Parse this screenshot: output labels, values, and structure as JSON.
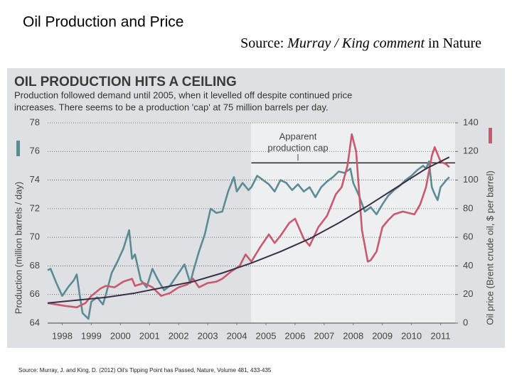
{
  "slide": {
    "title": "Oil Production and Price",
    "source": {
      "prefix": "Source: ",
      "italic": "Murray / King comment",
      "suffix": " in Nature"
    },
    "footnote": "Source: Murray, J. and King, D. (2012) Oil's Tipping Point has Passed, Nature, Volume 481, 433-435"
  },
  "chart_data": {
    "type": "line",
    "title": "OIL PRODUCTION HITS A CEILING",
    "subtitle": [
      "Production followed demand until 2005, when it levelled off despite continued price",
      "increases. There seems to be a production 'cap' at 75 million barrels per day."
    ],
    "y_label": "Production (million barrels / day)",
    "y2_label": "Oil price (Brent crude oil, $ per barrel)",
    "xlim": [
      1998,
      2012
    ],
    "xticks": [
      {
        "value": 1998.5,
        "label": "1998"
      },
      {
        "value": 1999.5,
        "label": "1999"
      },
      {
        "value": 2000.5,
        "label": "2000"
      },
      {
        "value": 2001.5,
        "label": "2001"
      },
      {
        "value": 2002.5,
        "label": "2002"
      },
      {
        "value": 2003.5,
        "label": "2003"
      },
      {
        "value": 2004.5,
        "label": "2004"
      },
      {
        "value": 2005.5,
        "label": "2005"
      },
      {
        "value": 2006.5,
        "label": "2006"
      },
      {
        "value": 2007.5,
        "label": "2007"
      },
      {
        "value": 2008.5,
        "label": "2008"
      },
      {
        "value": 2009.5,
        "label": "2009"
      },
      {
        "value": 2010.5,
        "label": "2010"
      },
      {
        "value": 2011.5,
        "label": "2011"
      }
    ],
    "ylim": [
      64,
      78
    ],
    "yticks": [
      64,
      66,
      68,
      70,
      72,
      74,
      76,
      78
    ],
    "y2lim": [
      0,
      140
    ],
    "y2ticks": [
      0,
      20,
      40,
      60,
      80,
      100,
      120,
      140
    ],
    "grid": true,
    "series": [
      {
        "color": "#5b8c95",
        "x": [
          1998.0,
          1998.1,
          1998.3,
          1998.5,
          1998.7,
          1998.9,
          1999.0,
          1999.1,
          1999.2,
          1999.4,
          1999.5,
          1999.7,
          1999.9,
          2000.0,
          2000.2,
          2000.4,
          2000.6,
          2000.8,
          2000.9,
          2001.0,
          2001.2,
          2001.4,
          2001.6,
          2001.8,
          2002.0,
          2002.2,
          2002.5,
          2002.7,
          2002.9,
          2003.0,
          2003.2,
          2003.4,
          2003.6,
          2003.8,
          2004.0,
          2004.2,
          2004.4,
          2004.5,
          2004.7,
          2004.9,
          2005.0,
          2005.2,
          2005.4,
          2005.6,
          2005.8,
          2006.0,
          2006.2,
          2006.4,
          2006.6,
          2006.8,
          2007.0,
          2007.2,
          2007.4,
          2007.6,
          2007.8,
          2008.0,
          2008.2,
          2008.4,
          2008.5,
          2008.7,
          2008.9,
          2009.1,
          2009.3,
          2009.5,
          2009.7,
          2009.9,
          2010.1,
          2010.3,
          2010.5,
          2010.7,
          2010.9,
          2011.0,
          2011.1,
          2011.2,
          2011.3,
          2011.4,
          2011.5,
          2011.7,
          2011.8
        ],
        "values": [
          67.7,
          67.8,
          66.8,
          65.9,
          66.5,
          67.0,
          67.4,
          66.0,
          64.7,
          64.3,
          65.5,
          65.8,
          65.3,
          66.0,
          67.5,
          68.3,
          69.2,
          70.5,
          68.5,
          68.8,
          67.0,
          66.5,
          67.8,
          67.0,
          66.3,
          66.6,
          67.5,
          68.1,
          66.8,
          67.6,
          69.0,
          70.2,
          72.0,
          71.7,
          71.8,
          73.2,
          74.2,
          73.2,
          73.8,
          73.3,
          73.5,
          74.3,
          74.0,
          73.7,
          73.2,
          74.0,
          73.8,
          73.3,
          73.7,
          73.2,
          73.5,
          72.8,
          73.5,
          73.9,
          74.2,
          74.6,
          74.5,
          74.8,
          73.8,
          72.9,
          71.8,
          72.1,
          71.6,
          72.3,
          72.9,
          73.3,
          73.6,
          74.0,
          74.3,
          74.7,
          75.0,
          74.8,
          75.3,
          73.5,
          73.0,
          72.6,
          73.5,
          74.0,
          74.2
        ]
      },
      {
        "color": "#c9596d",
        "axis": "y2",
        "x": [
          1998.0,
          1998.3,
          1998.6,
          1999.0,
          1999.3,
          1999.5,
          1999.8,
          2000.0,
          2000.3,
          2000.6,
          2000.9,
          2001.0,
          2001.3,
          2001.6,
          2001.9,
          2002.2,
          2002.5,
          2002.8,
          2003.0,
          2003.2,
          2003.5,
          2003.8,
          2004.0,
          2004.3,
          2004.6,
          2004.8,
          2005.0,
          2005.3,
          2005.6,
          2005.8,
          2006.0,
          2006.3,
          2006.5,
          2006.8,
          2007.0,
          2007.3,
          2007.6,
          2007.9,
          2008.1,
          2008.3,
          2008.45,
          2008.6,
          2008.8,
          2009.0,
          2009.1,
          2009.3,
          2009.5,
          2009.7,
          2009.9,
          2010.2,
          2010.4,
          2010.6,
          2010.8,
          2011.0,
          2011.2,
          2011.3,
          2011.5,
          2011.7,
          2011.8
        ],
        "values": [
          14,
          13,
          12,
          11,
          14,
          19,
          24,
          26,
          25,
          29,
          31,
          26,
          28,
          25,
          19,
          21,
          25,
          27,
          31,
          25,
          28,
          29,
          31,
          36,
          40,
          48,
          43,
          53,
          62,
          56,
          61,
          70,
          73,
          59,
          54,
          67,
          75,
          90,
          95,
          110,
          132,
          120,
          65,
          43,
          44,
          50,
          67,
          72,
          76,
          78,
          77,
          76,
          83,
          95,
          117,
          123,
          113,
          111,
          109
        ]
      },
      {
        "color": "#3b2e48",
        "axis": "y2",
        "x": [
          1998,
          1999,
          2000,
          2001,
          2002,
          2003,
          2004,
          2005,
          2006,
          2007,
          2008,
          2009,
          2010,
          2011,
          2011.8
        ],
        "values": [
          14,
          16,
          18,
          21,
          25,
          29,
          35,
          42,
          50,
          59,
          70,
          82,
          95,
          108,
          116
        ]
      }
    ],
    "annotation": {
      "text": [
        "Apparent",
        "production cap"
      ],
      "cap_line": {
        "y": 75.2,
        "x": [
          2005,
          2012
        ]
      }
    }
  }
}
